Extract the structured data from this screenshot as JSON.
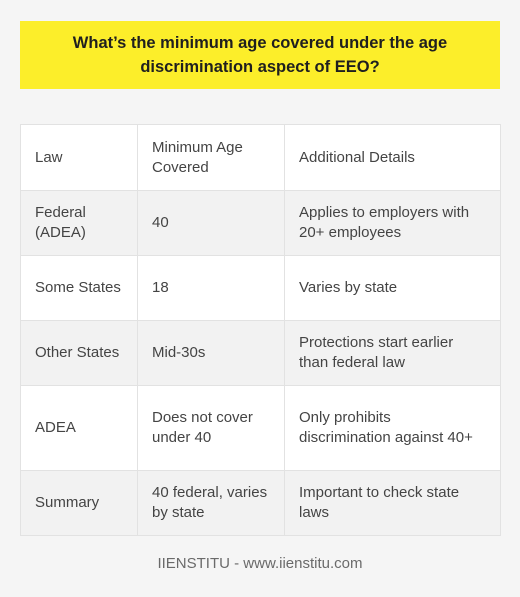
{
  "title": "What’s the minimum age covered under the age discrimination aspect of EEO?",
  "table": {
    "headers": [
      "Law",
      "Minimum Age Covered",
      "Additional Details"
    ],
    "rows": [
      [
        "Federal (ADEA)",
        "40",
        "Applies to employers with 20+ employees"
      ],
      [
        "Some States",
        "18",
        "Varies by state"
      ],
      [
        "Other States",
        "Mid-30s",
        "Protections start earlier than federal law"
      ],
      [
        "ADEA",
        "Does not cover under 40",
        "Only prohibits discrimination against 40+"
      ],
      [
        "Summary",
        "40 federal, varies by state",
        "Important to check state laws"
      ]
    ]
  },
  "footer": "IIENSTITU - www.iienstitu.com"
}
